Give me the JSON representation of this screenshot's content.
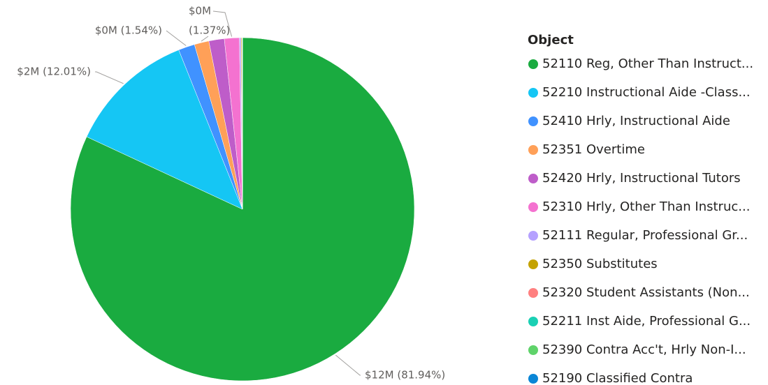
{
  "chart_data": {
    "type": "pie",
    "legend_title": "Object",
    "categories": [
      "52110 Reg, Other Than Instruct...",
      "52210 Instructional Aide -Class...",
      "52410 Hrly, Instructional Aide",
      "52351 Overtime",
      "52420 Hrly, Instructional Tutors",
      "52310 Hrly, Other Than Instruc...",
      "52111 Regular, Professional Gr...",
      "52350 Substitutes",
      "52320 Student Assistants (Non...",
      "52211 Inst Aide, Professional G...",
      "52390 Contra Acc't, Hrly Non-I...",
      "52190 Classified Contra"
    ],
    "values": [
      81.94,
      12.01,
      1.54,
      1.37,
      1.45,
      1.4,
      0.15,
      0.08,
      0.03,
      0.02,
      0.005,
      0.005
    ],
    "value_labels": [
      "$12M (81.94%)",
      "$2M (12.01%)",
      "$0M (1.54%)",
      "(1.37%)",
      null,
      "$0M",
      null,
      null,
      null,
      null,
      null,
      null
    ],
    "colors": [
      "#1aab40",
      "#15c6f4",
      "#4092ff",
      "#ffa058",
      "#be5dc9",
      "#f472d0",
      "#b5a1ff",
      "#c4a200",
      "#ff8080",
      "#1ad0b4",
      "#5fd36a",
      "#0a86d6"
    ],
    "legend_position": "right"
  }
}
